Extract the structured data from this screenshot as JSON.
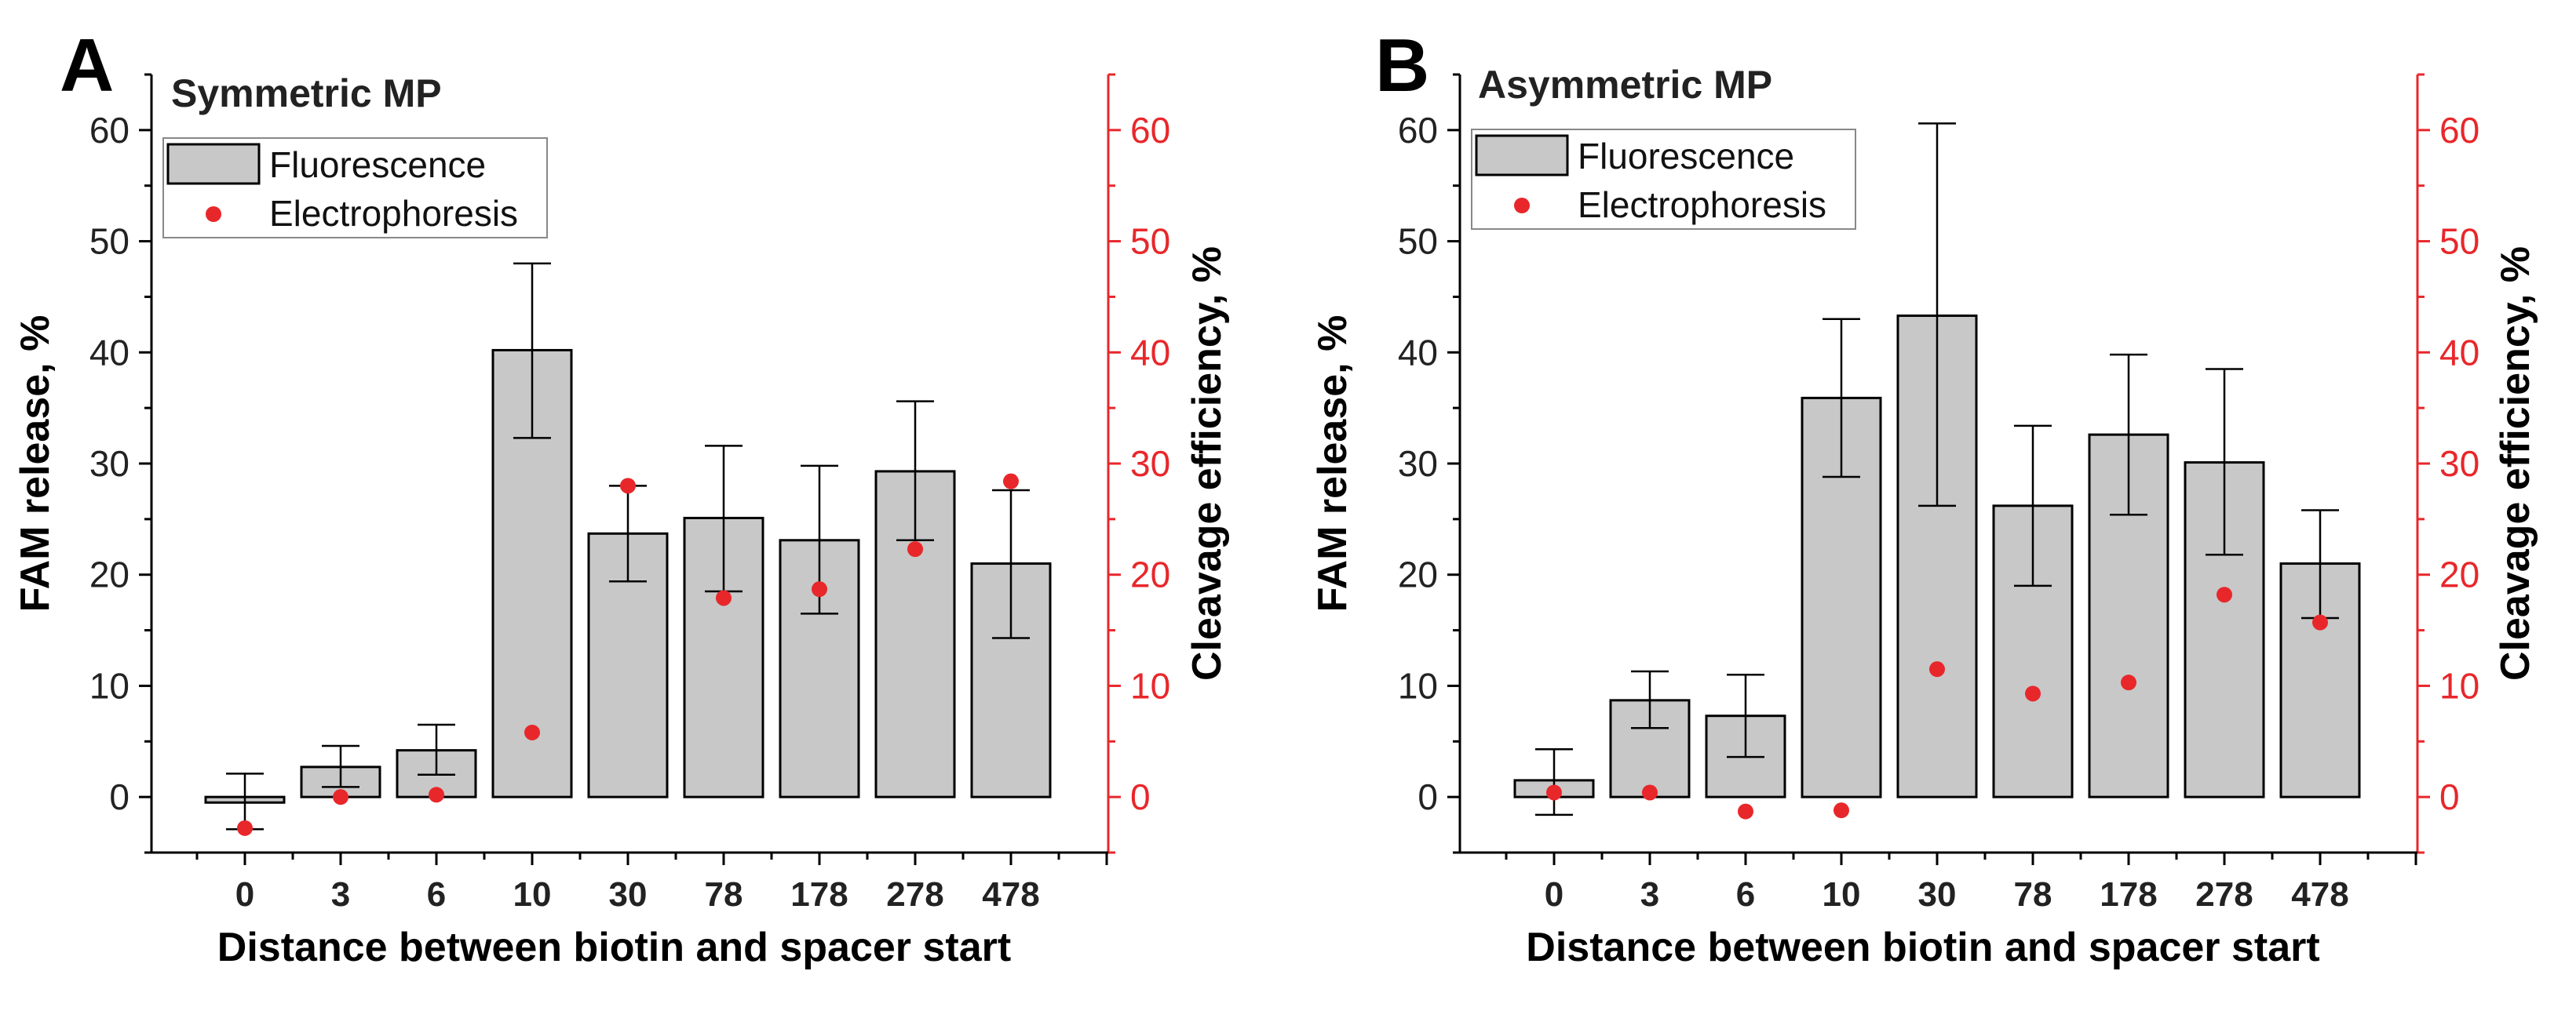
{
  "chart_data": [
    {
      "panel": "A",
      "type": "bar",
      "title": "Symmetric MP",
      "xlabel": "Distance between biotin and spacer start",
      "ylabel_left": "FAM release, %",
      "ylabel_right": "Cleavage efficiency, %",
      "categories": [
        "0",
        "3",
        "6",
        "10",
        "30",
        "78",
        "178",
        "278",
        "478"
      ],
      "ylim_left": [
        -5,
        65
      ],
      "ylim_right": [
        -5,
        65
      ],
      "yticks": [
        "0",
        "10",
        "20",
        "30",
        "40",
        "50",
        "60"
      ],
      "grid": false,
      "legend": {
        "placement": "top-left",
        "entries": [
          "Fluorescence",
          "Electrophoresis"
        ]
      },
      "colors": {
        "bar_fill": "#c8c8c8",
        "bar_edge": "#000000",
        "points": "#e8272b",
        "right_axis": "#e8272b"
      },
      "series": [
        {
          "name": "Fluorescence",
          "kind": "bar",
          "axis": "left",
          "values": [
            -0.5,
            2.7,
            4.2,
            40.2,
            23.7,
            25.1,
            23.1,
            29.3,
            21.0
          ],
          "err_low": [
            -2.9,
            0.9,
            2.0,
            32.3,
            19.4,
            18.5,
            16.5,
            23.1,
            14.3
          ],
          "err_high": [
            2.1,
            4.6,
            6.5,
            48.0,
            28.0,
            31.6,
            29.8,
            35.6,
            27.6
          ]
        },
        {
          "name": "Electrophoresis",
          "kind": "scatter",
          "axis": "right",
          "values": [
            -2.8,
            0.0,
            0.2,
            5.8,
            28.0,
            17.9,
            18.7,
            22.3,
            28.4
          ]
        }
      ]
    },
    {
      "panel": "B",
      "type": "bar",
      "title": "Asymmetric MP",
      "xlabel": "Distance between biotin and spacer start",
      "ylabel_left": "FAM release, %",
      "ylabel_right": "Cleavage efficiency, %",
      "categories": [
        "0",
        "3",
        "6",
        "10",
        "30",
        "78",
        "178",
        "278",
        "478"
      ],
      "ylim_left": [
        -5,
        65
      ],
      "ylim_right": [
        -5,
        65
      ],
      "yticks": [
        "0",
        "10",
        "20",
        "30",
        "40",
        "50",
        "60"
      ],
      "grid": false,
      "legend": {
        "placement": "top-left",
        "entries": [
          "Fluorescence",
          "Electrophoresis"
        ]
      },
      "colors": {
        "bar_fill": "#c8c8c8",
        "bar_edge": "#000000",
        "points": "#e8272b",
        "right_axis": "#e8272b"
      },
      "series": [
        {
          "name": "Fluorescence",
          "kind": "bar",
          "axis": "left",
          "values": [
            1.5,
            8.7,
            7.3,
            35.9,
            43.3,
            26.2,
            32.6,
            30.1,
            21.0
          ],
          "err_low": [
            -1.6,
            6.2,
            3.6,
            28.8,
            26.2,
            19.0,
            25.4,
            21.8,
            16.1
          ],
          "err_high": [
            4.3,
            11.3,
            11.0,
            43.0,
            60.6,
            33.4,
            39.8,
            38.5,
            25.8
          ]
        },
        {
          "name": "Electrophoresis",
          "kind": "scatter",
          "axis": "right",
          "values": [
            0.4,
            0.4,
            -1.3,
            -1.2,
            11.5,
            9.3,
            10.3,
            18.2,
            15.7
          ]
        }
      ]
    }
  ]
}
